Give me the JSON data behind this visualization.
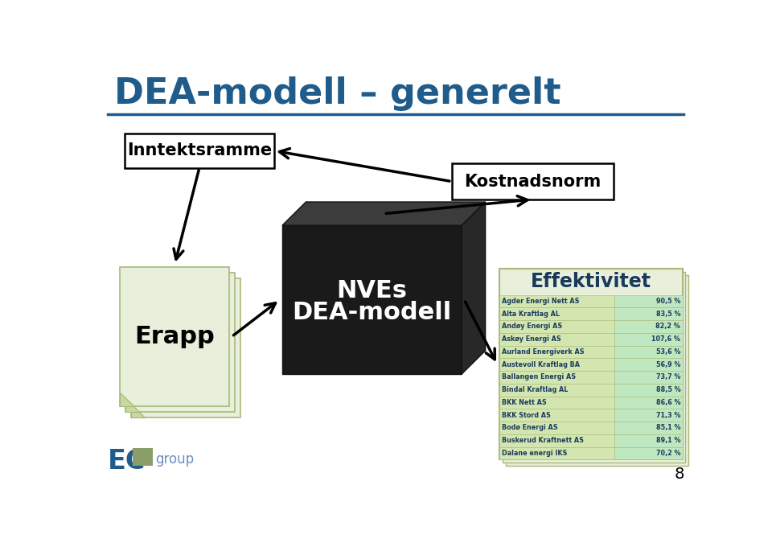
{
  "title": "DEA-modell – generelt",
  "title_color": "#1F5C8B",
  "bg_color": "#FFFFFF",
  "header_line_color": "#1F5C8B",
  "inntektsramme_text": "Inntektsramme",
  "kostnadsnorm_text": "Kostnadsnorm",
  "erapp_text": "Erapp",
  "nve_text1": "NVEs",
  "nve_text2": "DEA-modell",
  "effektivitet_title": "Effektivitet",
  "page_color_face": "#E8F0DC",
  "page_color_edge": "#A8B878",
  "page_color_fold": "#C8D8A0",
  "cube_front": "#1A1A1A",
  "cube_top": "#3C3C3C",
  "cube_right": "#282828",
  "eff_bg": "#E8F0DC",
  "eff_border": "#A8B878",
  "eff_title_color": "#1A3A5C",
  "row_left_bg": "#D4E6B0",
  "row_right_bg": "#C0E8C0",
  "row_text_color": "#1A3A5C",
  "table_data": [
    [
      "Agder Energi Nett AS",
      "90,5 %"
    ],
    [
      "Alta Kraftlag AL",
      "83,5 %"
    ],
    [
      "Andøy Energi AS",
      "82,2 %"
    ],
    [
      "Askøy Energi AS",
      "107,6 %"
    ],
    [
      "Aurland Energiverk AS",
      "53,6 %"
    ],
    [
      "Austevoll Kraftlag BA",
      "56,9 %"
    ],
    [
      "Ballangen Energi AS",
      "73,7 %"
    ],
    [
      "Bindal Kraftlag AL",
      "88,5 %"
    ],
    [
      "BKK Nett AS",
      "86,6 %"
    ],
    [
      "BKK Stord AS",
      "71,3 %"
    ],
    [
      "Bodø Energi AS",
      "85,1 %"
    ],
    [
      "Buskerud Kraftnett AS",
      "89,1 %"
    ],
    [
      "Dalane energi IKS",
      "70,2 %"
    ]
  ],
  "page_number": "8",
  "logo_ec_color": "#1F5C8B",
  "logo_box_color": "#8B9E6A",
  "logo_group_color": "#6B8FBF"
}
